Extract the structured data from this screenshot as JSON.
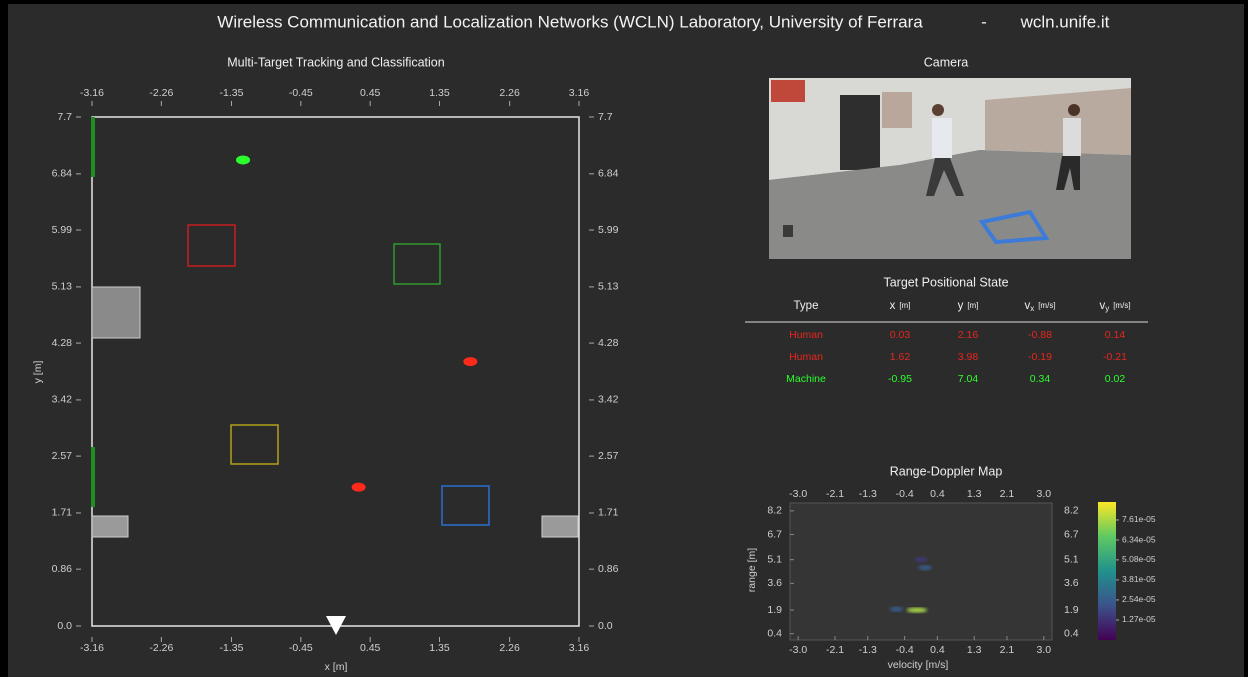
{
  "header": {
    "title": "Wireless Communication and Localization Networks (WCLN) Laboratory, University of Ferrara",
    "separator": "-",
    "site": "wcln.unife.it"
  },
  "tracking": {
    "title": "Multi-Target Tracking and Classification",
    "xlabel": "x [m]",
    "ylabel": "y [m]",
    "xlim": [
      -3.16,
      3.16
    ],
    "ylim": [
      0,
      7.7
    ],
    "xticks": [
      -3.16,
      -2.26,
      -1.35,
      -0.45,
      0.45,
      1.35,
      2.26,
      3.16
    ],
    "yticks": [
      {
        "value": 0,
        "label": "0.0"
      },
      0.86,
      1.71,
      2.57,
      3.42,
      4.28,
      5.13,
      5.99,
      6.84,
      7.7
    ],
    "targets": [
      {
        "x": 0.3,
        "y": 2.1,
        "color": "#ff2a1a"
      },
      {
        "x": 1.75,
        "y": 4.0,
        "color": "#ff2a1a"
      },
      {
        "x": -1.2,
        "y": 7.05,
        "color": "#2bff2b"
      }
    ]
  },
  "camera": {
    "title": "Camera"
  },
  "table": {
    "title": "Target Positional State",
    "headers": [
      {
        "label": "Type"
      },
      {
        "label": "x",
        "unit": "[m]"
      },
      {
        "label": "y",
        "unit": "[m]"
      },
      {
        "label": "v",
        "sub": "x",
        "unit": "[m/s]"
      },
      {
        "label": "v",
        "sub": "y",
        "unit": "[m/s]"
      }
    ],
    "rows": [
      {
        "color": "#e8261c",
        "cells": [
          "Human",
          "0.03",
          "2.16",
          "-0.88",
          "0.14"
        ]
      },
      {
        "color": "#e8261c",
        "cells": [
          "Human",
          "1.62",
          "3.98",
          "-0.19",
          "-0.21"
        ]
      },
      {
        "color": "#2bff2b",
        "cells": [
          "Machine",
          "-0.95",
          "7.04",
          "0.34",
          "0.02"
        ]
      }
    ]
  },
  "rd": {
    "title": "Range-Doppler Map",
    "xlabel": "velocity [m/s]",
    "ylabel": "range [m]",
    "xlim": [
      -3.2,
      3.2
    ],
    "ylim": [
      0,
      8.7
    ],
    "xticks": [
      {
        "value": -3,
        "label": "-3.0"
      },
      -2.1,
      -1.3,
      -0.4,
      0.4,
      1.3,
      2.1,
      {
        "value": 3,
        "label": "3.0"
      }
    ],
    "yticks": [
      0.4,
      1.9,
      3.6,
      5.1,
      6.7,
      8.2
    ],
    "clim": [
      0,
      8.75e-05
    ],
    "cticks": [
      {
        "value": 1.27e-05,
        "label": "1.27e-05"
      },
      {
        "value": 2.54e-05,
        "label": "2.54e-05"
      },
      {
        "value": 3.81e-05,
        "label": "3.81e-05"
      },
      {
        "value": 5.08e-05,
        "label": "5.08e-05"
      },
      {
        "value": 6.34e-05,
        "label": "6.34e-05"
      },
      {
        "value": 7.61e-05,
        "label": "7.61e-05"
      }
    ],
    "peaks": [
      {
        "velocity": -0.1,
        "range": 1.9,
        "value": 7.6e-05
      },
      {
        "velocity": -0.6,
        "range": 1.95,
        "value": 2.5e-05
      },
      {
        "velocity": 0.1,
        "range": 4.6,
        "value": 2.5e-05
      },
      {
        "velocity": 0.0,
        "range": 5.1,
        "value": 1.5e-05
      }
    ]
  }
}
